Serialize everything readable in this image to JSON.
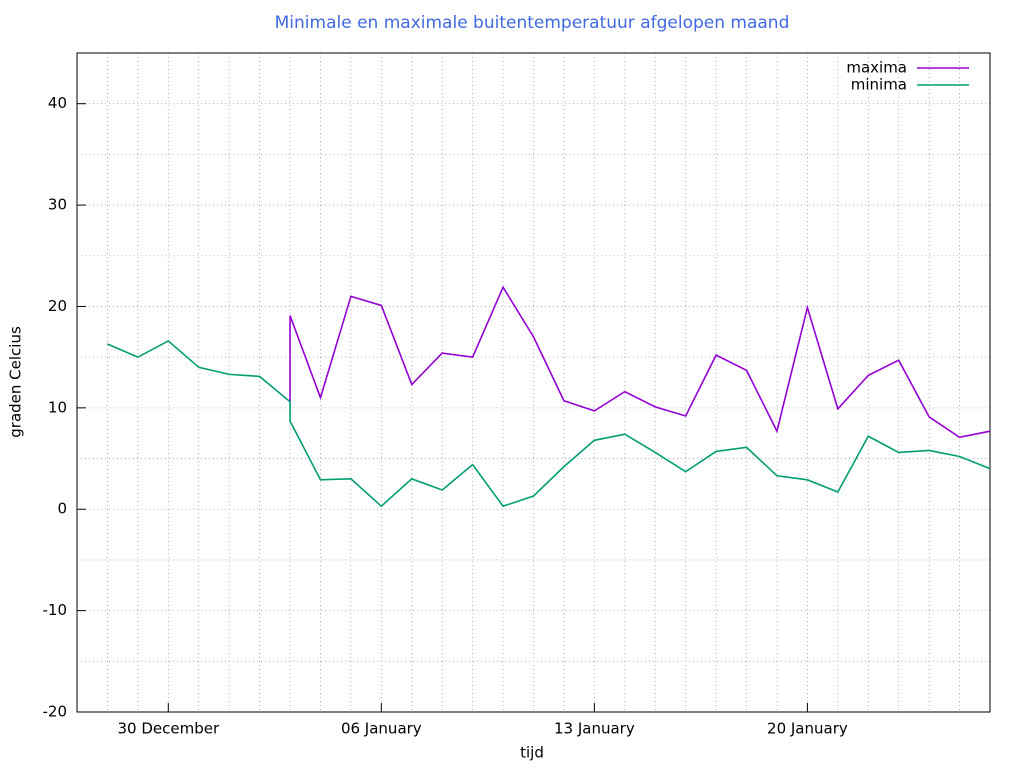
{
  "chart_data": {
    "type": "line",
    "title": "Minimale en maximale buitentemperatuur afgelopen maand",
    "xlabel": "tijd",
    "ylabel": "graden Celcius",
    "xlim": [
      "27 December",
      "26 January"
    ],
    "xticks": [
      "30 December",
      "06 January",
      "13 January",
      "20 January"
    ],
    "ylim": [
      -20,
      45
    ],
    "yticks": [
      -20,
      -10,
      0,
      10,
      20,
      30,
      40
    ],
    "yminorticks": [
      -15,
      -5,
      5,
      15,
      25,
      35,
      45
    ],
    "grid": true,
    "legend": "top-right",
    "series": [
      {
        "name": "maxima",
        "color": "#9400d3",
        "x": [
          "03 January",
          "03 January",
          "04 January",
          "05 January",
          "06 January",
          "07 January",
          "08 January",
          "09 January",
          "10 January",
          "11 January",
          "12 January",
          "13 January",
          "14 January",
          "15 January",
          "16 January",
          "17 January",
          "18 January",
          "19 January",
          "20 January",
          "21 January",
          "22 January",
          "23 January",
          "24 January",
          "25 January",
          "26 January"
        ],
        "values": [
          10.6,
          19.1,
          11.0,
          21.0,
          20.1,
          12.3,
          15.4,
          15.0,
          21.9,
          17.0,
          10.7,
          9.7,
          11.6,
          10.1,
          9.2,
          15.2,
          13.7,
          7.7,
          19.9,
          9.9,
          13.2,
          14.7,
          9.1,
          7.1,
          7.7
        ]
      },
      {
        "name": "minima",
        "color": "#009e73",
        "x": [
          "28 December",
          "29 December",
          "30 December",
          "31 December",
          "01 January",
          "02 January",
          "03 January",
          "03 January",
          "04 January",
          "05 January",
          "06 January",
          "07 January",
          "08 January",
          "09 January",
          "10 January",
          "11 January",
          "12 January",
          "13 January",
          "14 January",
          "15 January",
          "16 January",
          "17 January",
          "18 January",
          "19 January",
          "20 January",
          "21 January",
          "22 January",
          "23 January",
          "24 January",
          "25 January",
          "26 January"
        ],
        "values": [
          16.3,
          15.0,
          16.6,
          14.0,
          13.3,
          13.1,
          10.6,
          8.7,
          2.9,
          3.0,
          0.3,
          3.0,
          1.9,
          4.4,
          0.3,
          1.3,
          4.2,
          6.8,
          7.4,
          5.6,
          3.7,
          5.7,
          6.1,
          3.3,
          2.9,
          1.7,
          7.2,
          5.6,
          5.8,
          5.2,
          4.0
        ]
      }
    ]
  }
}
